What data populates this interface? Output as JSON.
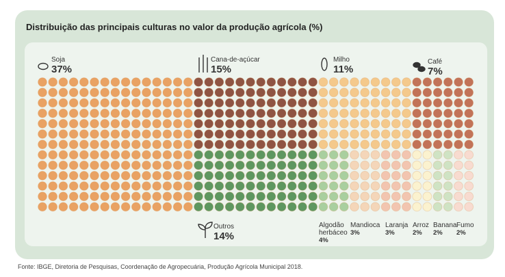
{
  "chart_data": {
    "type": "waffle",
    "title": "Distribuição das principais culturas no valor da produção agrícola (%)",
    "categories": [
      "Soja",
      "Cana-de-açúcar",
      "Milho",
      "Café",
      "Outros",
      "Algodão herbáceo",
      "Mandioca",
      "Laranja",
      "Arroz",
      "Banana",
      "Fumo"
    ],
    "values": [
      37,
      15,
      11,
      7,
      14,
      4,
      3,
      3,
      2,
      2,
      2
    ],
    "value_labels": [
      "37%",
      "15%",
      "11%",
      "7%",
      "14%",
      "4%",
      "3%",
      "3%",
      "2%",
      "2%",
      "2%"
    ],
    "colors": [
      "#e9a263",
      "#8f5443",
      "#f4c98c",
      "#c27358",
      "#5e9760",
      "#a9cf9f",
      "#f4d6b9",
      "#f2c5b0",
      "#fbf2cf",
      "#cfe3c4",
      "#f8dbd0"
    ],
    "source": "Fonte: IBGE, Diretoria de Pesquisas, Coordenação de Agropecuária, Produção Agrícola Municipal 2018."
  }
}
